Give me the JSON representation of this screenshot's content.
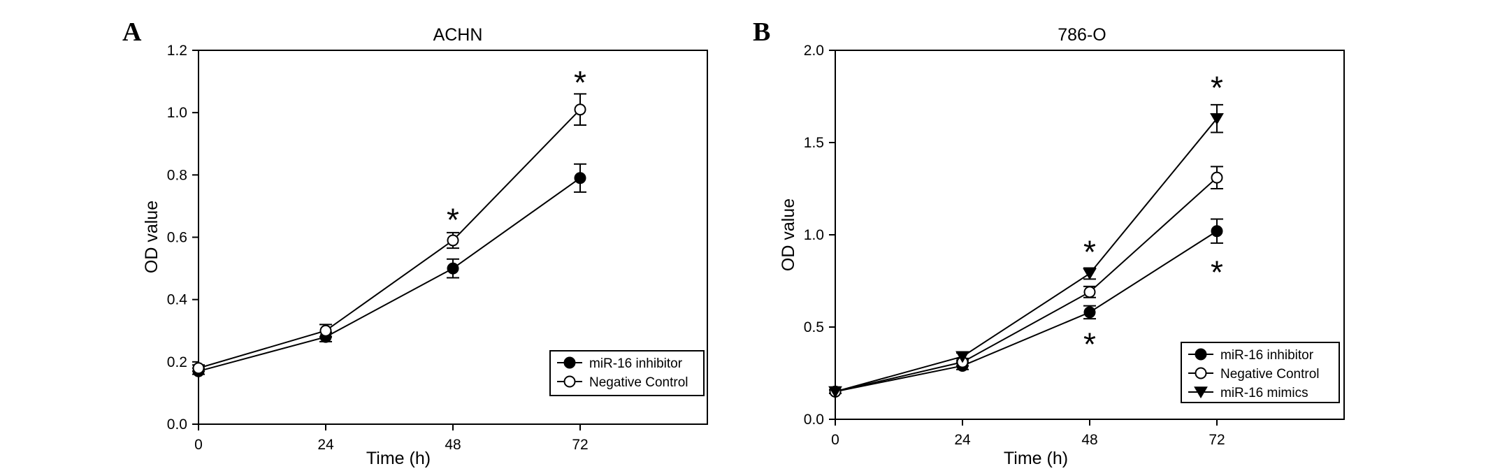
{
  "chart_data": [
    {
      "panel_letter": "A",
      "type": "line",
      "title": "ACHN",
      "xlabel": "Time (h)",
      "ylabel": "OD value",
      "x": [
        0,
        24,
        48,
        72
      ],
      "xticks": [
        "0",
        "24",
        "48",
        "72"
      ],
      "xlim": [
        0,
        96
      ],
      "yticks": [
        "0.0",
        "0.2",
        "0.4",
        "0.6",
        "0.8",
        "1.0",
        "1.2"
      ],
      "ylim": [
        0,
        1.2
      ],
      "legend_position": "bottom-right",
      "series": [
        {
          "name": "miR-16 inhibitor",
          "marker": "filled-circle",
          "values": [
            0.17,
            0.28,
            0.5,
            0.79
          ],
          "errors": [
            0.01,
            0.015,
            0.03,
            0.045
          ]
        },
        {
          "name": "Negative Control",
          "marker": "open-circle",
          "values": [
            0.18,
            0.3,
            0.59,
            1.01
          ],
          "errors": [
            0.01,
            0.02,
            0.025,
            0.05
          ]
        }
      ],
      "annotations": [
        {
          "text": "*",
          "x": 48,
          "y": 0.67
        },
        {
          "text": "*",
          "x": 72,
          "y": 1.11
        }
      ]
    },
    {
      "panel_letter": "B",
      "type": "line",
      "title": "786-O",
      "xlabel": "Time (h)",
      "ylabel": "OD value",
      "x": [
        0,
        24,
        48,
        72
      ],
      "xticks": [
        "0",
        "24",
        "48",
        "72"
      ],
      "xlim": [
        0,
        96
      ],
      "yticks": [
        "0.0",
        "0.5",
        "1.0",
        "1.5",
        "2.0"
      ],
      "ylim": [
        0,
        2.0
      ],
      "legend_position": "bottom-right",
      "series": [
        {
          "name": "miR-16 inhibitor",
          "marker": "filled-circle",
          "values": [
            0.15,
            0.29,
            0.58,
            1.02
          ],
          "errors": [
            0.01,
            0.02,
            0.035,
            0.065
          ]
        },
        {
          "name": "Negative Control",
          "marker": "open-circle",
          "values": [
            0.15,
            0.31,
            0.69,
            1.31
          ],
          "errors": [
            0.01,
            0.02,
            0.03,
            0.06
          ]
        },
        {
          "name": "miR-16 mimics",
          "marker": "filled-triangle-down",
          "values": [
            0.15,
            0.34,
            0.79,
            1.63
          ],
          "errors": [
            0.01,
            0.02,
            0.03,
            0.075
          ]
        }
      ],
      "annotations": [
        {
          "text": "*",
          "x": 48,
          "y": 0.93
        },
        {
          "text": "*",
          "x": 48,
          "y": 0.43
        },
        {
          "text": "*",
          "x": 72,
          "y": 1.82
        },
        {
          "text": "*",
          "x": 72,
          "y": 0.82
        }
      ]
    }
  ]
}
